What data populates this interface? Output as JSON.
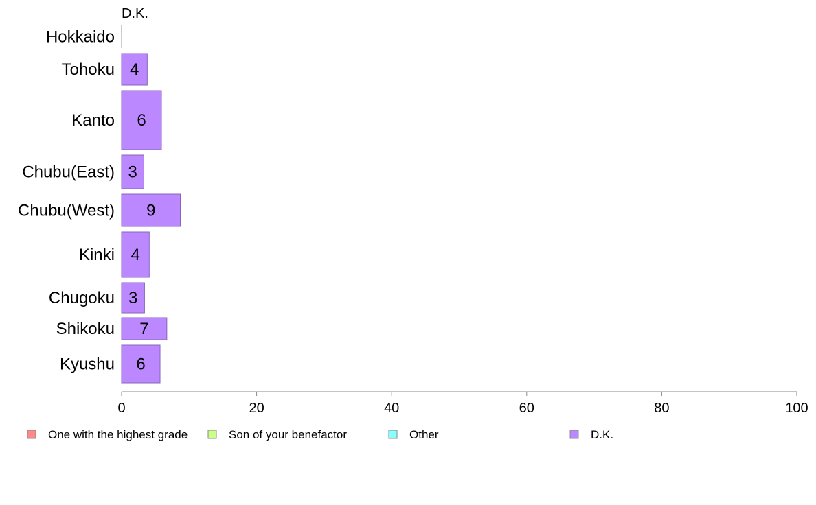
{
  "chart_data": {
    "type": "bar",
    "orientation": "horizontal",
    "panel_title": "D.K.",
    "categories": [
      "Hokkaido",
      "Tohoku",
      "Kanto",
      "Chubu(East)",
      "Chubu(West)",
      "Kinki",
      "Chugoku",
      "Shikoku",
      "Kyushu"
    ],
    "series": [
      {
        "name": "D.K.",
        "color": "#bb88ff",
        "values": [
          0,
          3.8,
          5.9,
          3.3,
          8.7,
          4.1,
          3.4,
          6.7,
          5.7
        ],
        "labels": [
          "",
          "4",
          "6",
          "3",
          "9",
          "4",
          "3",
          "7",
          "6"
        ]
      }
    ],
    "xlim": [
      0,
      100
    ],
    "xticks": [
      0,
      20,
      40,
      60,
      80,
      100
    ],
    "xlabel": "",
    "ylabel": "",
    "grid": false,
    "legend": {
      "position": "bottom",
      "items": [
        {
          "label": "One with the highest grade",
          "color": "#ff8888"
        },
        {
          "label": "Son of your benefactor",
          "color": "#ccff88"
        },
        {
          "label": "Other",
          "color": "#88ffff"
        },
        {
          "label": "D.K.",
          "color": "#bb88ff"
        }
      ]
    }
  }
}
